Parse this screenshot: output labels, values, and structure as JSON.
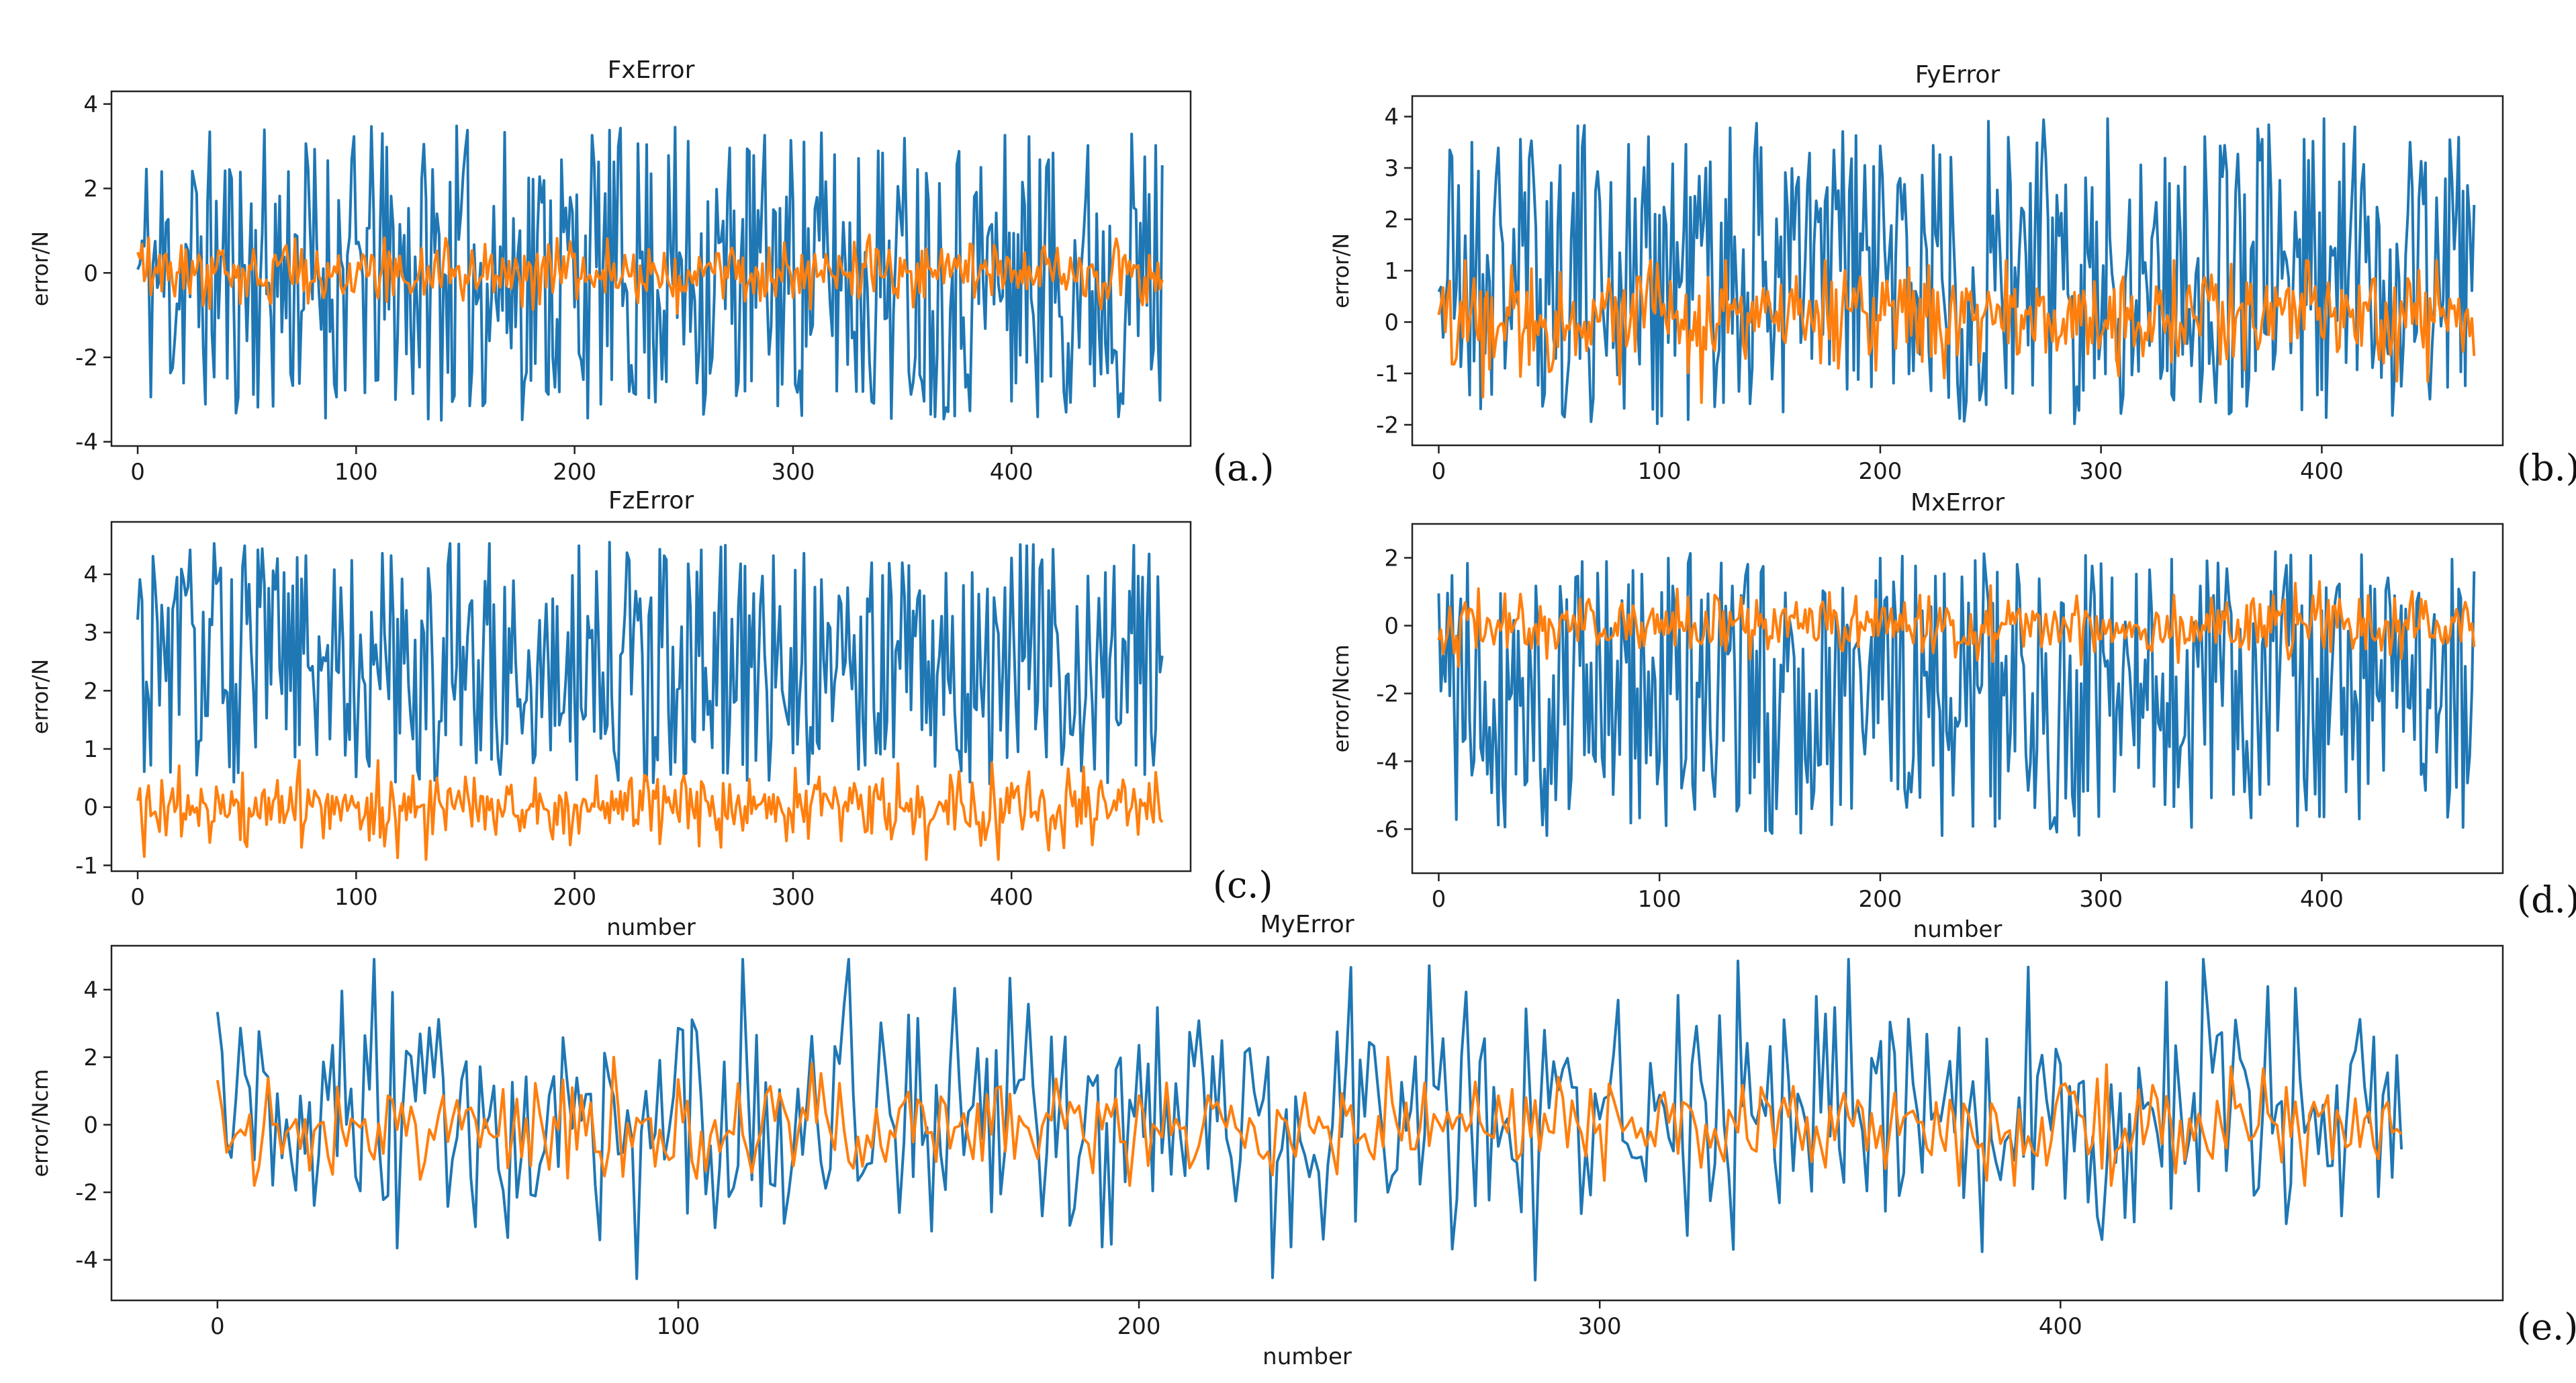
{
  "colors": {
    "series_blue": "#1f77b4",
    "series_orange": "#ff7f0e",
    "axes": "#222222"
  },
  "chart_data": [
    {
      "id": "a",
      "type": "line",
      "title": "FxError",
      "xlabel": "",
      "ylabel": "error/N",
      "panel_tag": "(a.)",
      "n": 470,
      "xlim": [
        -12,
        482
      ],
      "ylim": [
        -4.1,
        4.3
      ],
      "xticks": [
        0,
        100,
        200,
        300,
        400
      ],
      "yticks": [
        -4,
        -2,
        0,
        2,
        4
      ],
      "series": [
        {
          "color": "#1f77b4",
          "noise": "uniform",
          "center": 0.0,
          "spread": 3.5,
          "min": -3.7,
          "max": 3.8,
          "seed": 11
        },
        {
          "color": "#ff7f0e",
          "noise": "normal",
          "center": 0.0,
          "spread": 0.35,
          "min": -1.1,
          "max": 0.9,
          "seed": 12
        }
      ]
    },
    {
      "id": "b",
      "type": "line",
      "title": "FyError",
      "xlabel": "",
      "ylabel": "error/N",
      "panel_tag": "(b.)",
      "n": 470,
      "xlim": [
        -12,
        482
      ],
      "ylim": [
        -2.4,
        4.4
      ],
      "xticks": [
        0,
        100,
        200,
        300,
        400
      ],
      "yticks": [
        -2,
        -1,
        0,
        1,
        2,
        3,
        4
      ],
      "series": [
        {
          "color": "#1f77b4",
          "noise": "uniform",
          "center": 1.0,
          "spread": 3.0,
          "min": -2.1,
          "max": 4.2,
          "seed": 21
        },
        {
          "color": "#ff7f0e",
          "noise": "normal",
          "center": 0.1,
          "spread": 0.5,
          "min": -1.6,
          "max": 1.2,
          "seed": 22
        }
      ]
    },
    {
      "id": "c",
      "type": "line",
      "title": "FzError",
      "xlabel": "number",
      "ylabel": "error/N",
      "panel_tag": "(c.)",
      "n": 470,
      "xlim": [
        -12,
        482
      ],
      "ylim": [
        -1.1,
        4.9
      ],
      "xticks": [
        0,
        100,
        200,
        300,
        400
      ],
      "yticks": [
        -1,
        0,
        1,
        2,
        3,
        4
      ],
      "series": [
        {
          "color": "#1f77b4",
          "noise": "uniform",
          "center": 2.5,
          "spread": 2.1,
          "min": 0.0,
          "max": 4.6,
          "seed": 31
        },
        {
          "color": "#ff7f0e",
          "noise": "normal",
          "center": 0.0,
          "spread": 0.3,
          "min": -0.9,
          "max": 0.8,
          "seed": 32
        }
      ]
    },
    {
      "id": "d",
      "type": "line",
      "title": "MxError",
      "xlabel": "number",
      "ylabel": "error/Ncm",
      "panel_tag": "(d.)",
      "n": 470,
      "xlim": [
        -12,
        482
      ],
      "ylim": [
        -7.3,
        3.0
      ],
      "xticks": [
        0,
        100,
        200,
        300,
        400
      ],
      "yticks": [
        -6,
        -4,
        -2,
        0,
        2
      ],
      "series": [
        {
          "color": "#1f77b4",
          "noise": "uniform",
          "center": -2.0,
          "spread": 4.2,
          "min": -6.7,
          "max": 2.6,
          "seed": 41
        },
        {
          "color": "#ff7f0e",
          "noise": "normal",
          "center": 0.0,
          "spread": 0.45,
          "min": -1.2,
          "max": 1.5,
          "seed": 42
        }
      ]
    },
    {
      "id": "e",
      "type": "line",
      "title": "MyError",
      "xlabel": "number",
      "ylabel": "error/Ncm",
      "panel_tag": "(e.)",
      "n": 475,
      "xlim": [
        -23,
        496
      ],
      "ylim": [
        -5.2,
        5.3
      ],
      "xticks": [
        0,
        100,
        200,
        300,
        400
      ],
      "yticks": [
        -4,
        -2,
        0,
        2,
        4
      ],
      "series": [
        {
          "color": "#1f77b4",
          "noise": "normal",
          "center": 0.0,
          "spread": 1.9,
          "min": -4.6,
          "max": 4.9,
          "seed": 51
        },
        {
          "color": "#ff7f0e",
          "noise": "normal",
          "center": 0.0,
          "spread": 0.75,
          "min": -1.8,
          "max": 2.0,
          "seed": 52
        }
      ]
    }
  ]
}
